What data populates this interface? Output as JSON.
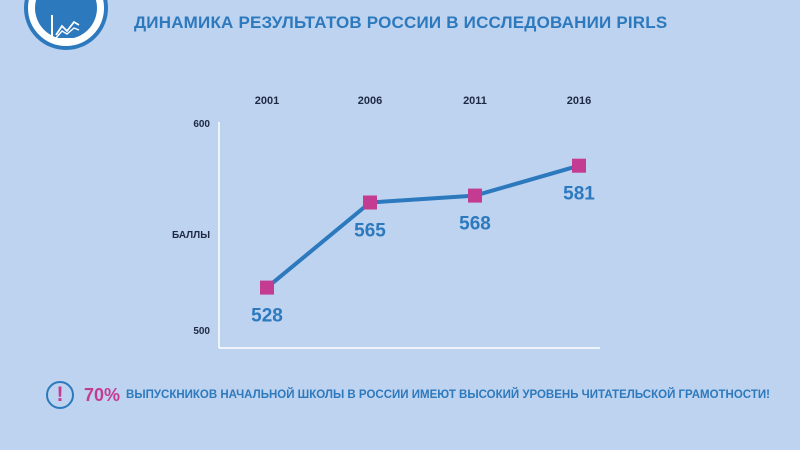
{
  "header": {
    "icon": "line-chart-icon",
    "title": "ДИНАМИКА РЕЗУЛЬТАТОВ РОССИИ В ИССЛЕДОВАНИИ PIRLS"
  },
  "chart_data": {
    "type": "line",
    "title": "",
    "xlabel": "",
    "ylabel": "БАЛЛЫ",
    "x": [
      "2001",
      "2006",
      "2011",
      "2016"
    ],
    "series": [
      {
        "values": [
          528,
          565,
          568,
          581
        ]
      }
    ],
    "value_labels": [
      "528",
      "565",
      "568",
      "581"
    ],
    "y_tick_labels": [
      "600",
      "500"
    ],
    "ylim": [
      500,
      600
    ],
    "x_axis_position": "top",
    "grid": false,
    "line_color": "#2c79be",
    "marker_color": "#c43b92",
    "marker": "square"
  },
  "footer": {
    "alert_icon": "exclamation-icon",
    "alert_symbol": "!",
    "percent": "70%",
    "text": "выпускников начальной школы в России имеют высокий уровень читательской грамотности!"
  },
  "colors": {
    "background": "#bed3ef",
    "accent": "#2c79be",
    "highlight": "#c43b92"
  }
}
